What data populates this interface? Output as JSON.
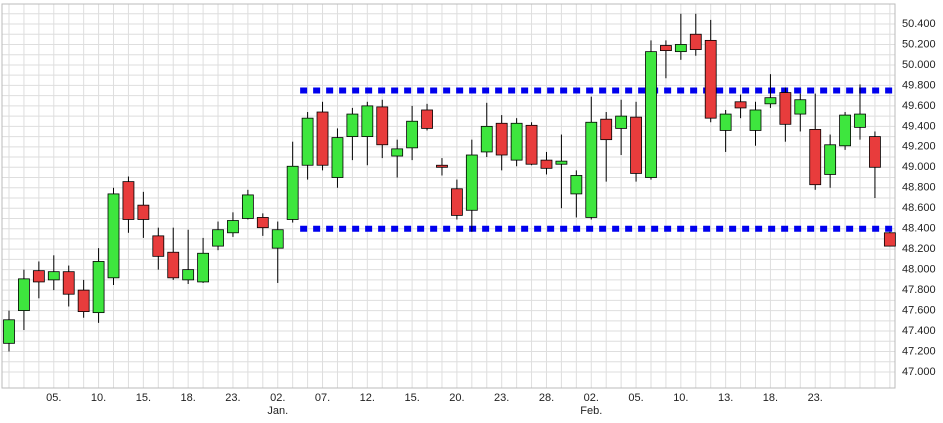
{
  "chart_data": {
    "type": "candlestick",
    "categories": [
      null,
      null,
      null,
      "05.",
      null,
      null,
      "10.",
      null,
      null,
      "15.",
      null,
      null,
      "18.",
      null,
      null,
      "23.",
      null,
      null,
      [
        "02.",
        "Jan."
      ],
      null,
      null,
      "07.",
      null,
      null,
      "12.",
      null,
      null,
      "15.",
      null,
      null,
      "20.",
      null,
      null,
      "23.",
      null,
      null,
      "28.",
      null,
      null,
      [
        "02.",
        "Feb."
      ],
      null,
      null,
      "05.",
      null,
      null,
      "10.",
      null,
      null,
      "13.",
      null,
      null,
      "18.",
      null,
      null,
      "23.",
      null,
      null,
      null,
      null,
      null
    ],
    "open": [
      47.28,
      47.6,
      47.99,
      47.9,
      47.98,
      47.8,
      47.58,
      47.92,
      48.86,
      48.63,
      48.33,
      48.17,
      47.9,
      47.88,
      48.23,
      48.36,
      48.5,
      48.51,
      48.21,
      48.49,
      49.02,
      49.54,
      48.9,
      49.3,
      49.3,
      49.59,
      49.11,
      49.19,
      49.56,
      49.02,
      48.79,
      48.58,
      49.15,
      49.43,
      49.07,
      49.41,
      49.07,
      49.03,
      48.74,
      48.51,
      49.47,
      49.38,
      49.49,
      48.9,
      50.19,
      50.13,
      50.3,
      50.24,
      49.36,
      49.64,
      49.36,
      49.62,
      49.73,
      49.52,
      49.37,
      48.93,
      49.21,
      49.39,
      49.3,
      48.36
    ],
    "high": [
      47.6,
      48.0,
      48.08,
      48.14,
      48.04,
      47.9,
      48.21,
      48.8,
      48.91,
      48.76,
      48.41,
      48.41,
      48.39,
      48.31,
      48.47,
      48.56,
      48.78,
      48.55,
      48.47,
      49.25,
      49.54,
      49.64,
      49.38,
      49.58,
      49.64,
      49.66,
      49.27,
      49.6,
      49.62,
      49.09,
      48.88,
      49.27,
      49.63,
      49.51,
      49.48,
      49.44,
      49.15,
      49.32,
      48.97,
      49.69,
      49.54,
      49.66,
      49.64,
      50.24,
      50.24,
      50.5,
      50.5,
      50.44,
      49.56,
      49.71,
      49.64,
      49.91,
      49.78,
      49.72,
      49.72,
      49.32,
      49.54,
      49.81,
      49.35,
      48.37
    ],
    "low": [
      47.2,
      47.41,
      47.72,
      47.8,
      47.64,
      47.53,
      47.48,
      47.85,
      48.36,
      48.31,
      48.0,
      47.9,
      47.86,
      47.87,
      48.19,
      48.32,
      48.49,
      48.33,
      47.87,
      48.46,
      48.88,
      48.97,
      48.8,
      49.07,
      49.02,
      49.09,
      48.9,
      49.07,
      49.36,
      48.92,
      48.49,
      48.37,
      49.1,
      48.97,
      49.01,
      49.02,
      48.93,
      48.6,
      48.51,
      48.49,
      48.86,
      49.12,
      48.86,
      48.88,
      49.87,
      50.05,
      50.09,
      49.44,
      49.15,
      49.48,
      49.21,
      49.58,
      49.25,
      49.35,
      48.78,
      48.8,
      49.17,
      49.27,
      48.7,
      48.23
    ],
    "close": [
      47.51,
      47.91,
      47.88,
      47.98,
      47.76,
      47.59,
      48.08,
      48.74,
      48.49,
      48.49,
      48.13,
      47.92,
      48.0,
      48.16,
      48.39,
      48.48,
      48.73,
      48.41,
      48.39,
      49.01,
      49.48,
      49.02,
      49.29,
      49.52,
      49.6,
      49.22,
      49.18,
      49.45,
      49.38,
      49.0,
      48.53,
      49.12,
      49.4,
      49.12,
      49.43,
      49.03,
      48.99,
      49.06,
      48.92,
      49.44,
      49.27,
      49.5,
      48.94,
      50.13,
      50.14,
      50.2,
      50.15,
      49.48,
      49.52,
      49.58,
      49.56,
      49.68,
      49.42,
      49.66,
      48.83,
      49.22,
      49.51,
      49.52,
      49.0,
      48.23
    ],
    "up_color": "#3ee63e",
    "down_color": "#e83c3c",
    "levels": [
      49.75,
      48.4
    ],
    "level_color": "#0000ee",
    "ylim": [
      46.9,
      50.55
    ],
    "yticks": [
      {
        "value": 47.0,
        "label": "47.000"
      },
      {
        "value": 47.2,
        "label": "47.200"
      },
      {
        "value": 47.4,
        "label": "47.400"
      },
      {
        "value": 47.6,
        "label": "47.600"
      },
      {
        "value": 47.8,
        "label": "47.800"
      },
      {
        "value": 48.0,
        "label": "48.000"
      },
      {
        "value": 48.2,
        "label": "48.200"
      },
      {
        "value": 48.4,
        "label": "48.400"
      },
      {
        "value": 48.6,
        "label": "48.600"
      },
      {
        "value": 48.8,
        "label": "48.800"
      },
      {
        "value": 49.0,
        "label": "49.000"
      },
      {
        "value": 49.2,
        "label": "49.200"
      },
      {
        "value": 49.4,
        "label": "49.400"
      },
      {
        "value": 49.6,
        "label": "49.600"
      },
      {
        "value": 49.8,
        "label": "49.800"
      },
      {
        "value": 50.0,
        "label": "50.000"
      },
      {
        "value": 50.2,
        "label": "50.200"
      },
      {
        "value": 50.4,
        "label": "50.400"
      }
    ],
    "grid": true
  }
}
